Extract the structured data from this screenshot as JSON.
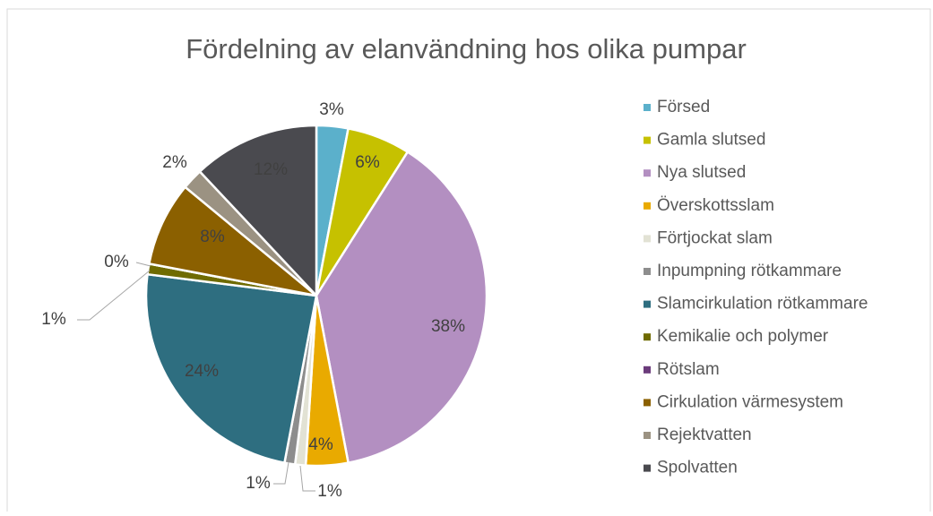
{
  "chart_data": {
    "type": "pie",
    "title": "Fördelning av elanvändning hos olika pumpar",
    "categories": [
      "Försed",
      "Gamla slutsed",
      "Nya slutsed",
      "Överskottsslam",
      "Förtjockat slam",
      "Inpumpning rötkammare",
      "Slamcirkulation rötkammare",
      "Kemikalie och polymer",
      "Rötslam",
      "Cirkulation värmesystem",
      "Rejektvatten",
      "Spolvatten"
    ],
    "values": [
      3,
      6,
      38,
      4,
      1,
      1,
      24,
      1,
      0,
      8,
      2,
      12
    ],
    "value_labels": [
      "3%",
      "6%",
      "38%",
      "4%",
      "1%",
      "1%",
      "24%",
      "1%",
      "0%",
      "8%",
      "2%",
      "12%"
    ],
    "colors": [
      "#5bb0cb",
      "#c6c100",
      "#b38fc1",
      "#e9aa00",
      "#e2e2d4",
      "#8d8d8d",
      "#2e6e80",
      "#6f6b00",
      "#6b3b7b",
      "#8b6000",
      "#9b9282",
      "#4a4a4f"
    ],
    "legend": "right"
  }
}
